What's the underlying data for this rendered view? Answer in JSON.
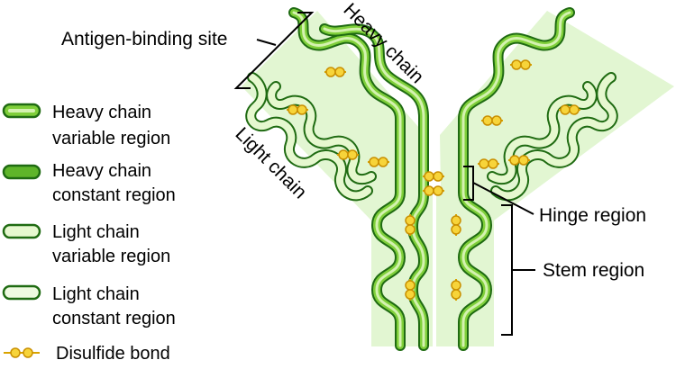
{
  "labels": {
    "antigen_binding_site": "Antigen-binding site",
    "heavy_chain": "Heavy chain",
    "light_chain": "Light chain",
    "hinge_region": "Hinge region",
    "stem_region": "Stem region"
  },
  "legend": [
    {
      "line1": "Heavy chain",
      "line2": "variable region",
      "icon": "heavy-variable-swatch"
    },
    {
      "line1": "Heavy chain",
      "line2": "constant region",
      "icon": "heavy-constant-swatch"
    },
    {
      "line1": "Light chain",
      "line2": "variable region",
      "icon": "light-variable-swatch"
    },
    {
      "line1": "Light chain",
      "line2": "constant region",
      "icon": "light-constant-swatch"
    },
    {
      "line1": "Disulfide bond",
      "icon": "disulfide-bond-icon"
    }
  ],
  "colors": {
    "background_band": "#dff5cf",
    "chain_outline": "#1f6b12",
    "heavy_fill": "#7fcf3a",
    "heavy_core": "#cdf0a6",
    "light_fill": "#e6f8cf",
    "disulfide": "#f2bf17",
    "disulfide_stroke": "#c98f00"
  }
}
